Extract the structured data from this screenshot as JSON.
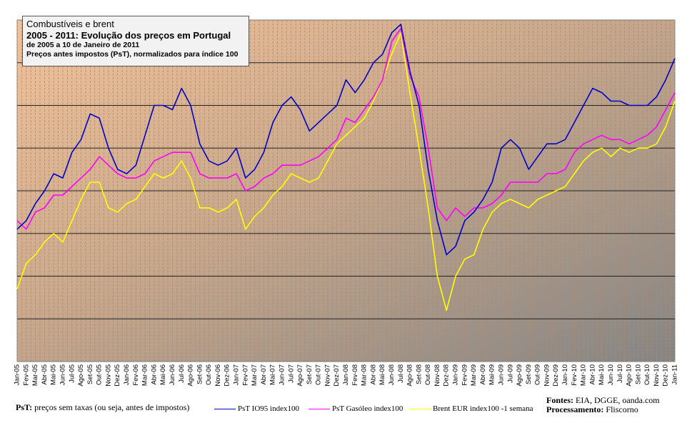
{
  "chart_data": {
    "type": "line",
    "title": "Combustíveis e brent",
    "subtitle": "2005 - 2011: Evolução dos preços em Portugal",
    "subtitle2": "de 2005 a 10 de Janeiro de 2011",
    "subtitle3": "Preços antes impostos (PsT), normalizados para índice 100",
    "xlabel": "",
    "ylabel": "",
    "ylim": [
      20,
      100
    ],
    "grid": true,
    "legend_position": "bottom",
    "categories": [
      "Jan-05",
      "Fev-05",
      "Mar-05",
      "Abr-05",
      "Mai-05",
      "Jun-05",
      "Jul-05",
      "Ago-05",
      "Set-05",
      "Out-05",
      "Nov-05",
      "Dez-05",
      "Jan-06",
      "Fev-06",
      "Mar-06",
      "Abr-06",
      "Mai-06",
      "Jun-06",
      "Jul-06",
      "Ago-06",
      "Set-06",
      "Out-06",
      "Nov-06",
      "Dez-06",
      "Jan-07",
      "Fev-07",
      "Mar-07",
      "Abr-07",
      "Mai-07",
      "Jun-07",
      "Jul-07",
      "Ago-07",
      "Set-07",
      "Out-07",
      "Nov-07",
      "Dez-07",
      "Jan-08",
      "Fev-08",
      "Mar-08",
      "Abr-08",
      "Mai-08",
      "Jun-08",
      "Jul-08",
      "Ago-08",
      "Set-08",
      "Out-08",
      "Nov-08",
      "Dez-08",
      "Jan-09",
      "Fev-09",
      "Mar-09",
      "Abr-09",
      "Mai-09",
      "Jun-09",
      "Jul-09",
      "Ago-09",
      "Set-09",
      "Out-09",
      "Nov-09",
      "Dez-09",
      "Jan-10",
      "Fev-10",
      "Mar-10",
      "Abr-10",
      "Mai-10",
      "Jun-10",
      "Jul-10",
      "Ago-10",
      "Set-10",
      "Out-10",
      "Nov-10",
      "Dez-10",
      "Jan-11"
    ],
    "series": [
      {
        "name": "PsT IO95 index100",
        "color": "#0000cc",
        "values": [
          51,
          53,
          57,
          60,
          64,
          63,
          69,
          72,
          78,
          77,
          70,
          65,
          64,
          66,
          73,
          80,
          80,
          79,
          84,
          80,
          71,
          67,
          66,
          67,
          70,
          63,
          65,
          69,
          76,
          80,
          82,
          79,
          74,
          76,
          78,
          80,
          86,
          83,
          86,
          90,
          92,
          97,
          99,
          88,
          80,
          65,
          53,
          45,
          47,
          53,
          55,
          58,
          62,
          70,
          72,
          70,
          65,
          68,
          71,
          71,
          72,
          76,
          80,
          84,
          83,
          81,
          81,
          80,
          80,
          80,
          82,
          86,
          91
        ]
      },
      {
        "name": "PsT Gasóleo index100",
        "color": "#ff00ff",
        "values": [
          53,
          51,
          55,
          56,
          59,
          59,
          61,
          63,
          65,
          68,
          66,
          64,
          63,
          63,
          64,
          67,
          68,
          69,
          69,
          69,
          64,
          63,
          63,
          63,
          64,
          60,
          61,
          63,
          64,
          66,
          66,
          66,
          67,
          68,
          70,
          72,
          77,
          76,
          79,
          82,
          86,
          95,
          98,
          87,
          82,
          70,
          56,
          53,
          56,
          54,
          56,
          56,
          57,
          59,
          62,
          62,
          62,
          62,
          64,
          64,
          65,
          69,
          71,
          72,
          73,
          72,
          72,
          71,
          72,
          73,
          75,
          79,
          83
        ]
      },
      {
        "name": "Brent EUR index100 -1 semana",
        "color": "#ffff00",
        "values": [
          37,
          43,
          45,
          48,
          50,
          48,
          53,
          58,
          62,
          62,
          56,
          55,
          57,
          58,
          61,
          64,
          63,
          64,
          67,
          63,
          56,
          56,
          55,
          56,
          58,
          51,
          54,
          56,
          59,
          61,
          64,
          63,
          62,
          63,
          67,
          71,
          73,
          75,
          77,
          81,
          86,
          92,
          97,
          83,
          70,
          56,
          40,
          32,
          40,
          44,
          45,
          51,
          55,
          57,
          58,
          57,
          56,
          58,
          59,
          60,
          61,
          64,
          67,
          69,
          70,
          68,
          70,
          69,
          70,
          70,
          71,
          75,
          81
        ]
      }
    ]
  },
  "labels": {
    "footnote_bold": "PsT:",
    "footnote_text": " preços sem taxas (ou seja, antes de impostos)",
    "sources_bold": "Fontes:",
    "sources_text": " EIA, DGGE, oanda.com",
    "processing_bold": "Processamento:",
    "processing_text": " Fliscorno"
  }
}
